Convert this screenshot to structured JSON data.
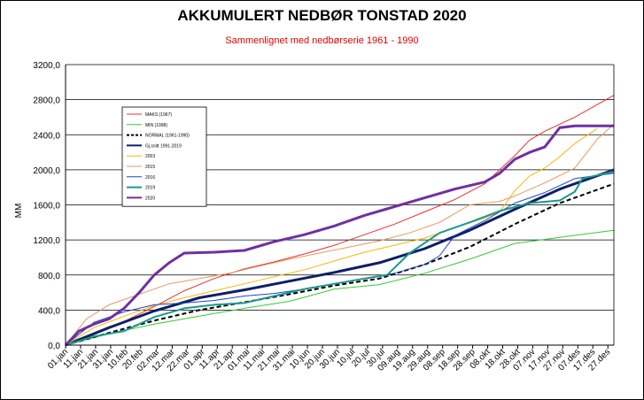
{
  "chart_data": {
    "type": "line",
    "title": "AKKUMULERT NEDBØR TONSTAD 2020",
    "subtitle": "Sammenlignet med nedbørserie 1961 - 1990",
    "ylabel": "MM",
    "ylim": [
      0,
      3200
    ],
    "yticks": [
      "0,0",
      "400,0",
      "800,0",
      "1200,0",
      "1600,0",
      "2000,0",
      "2400,0",
      "2800,0",
      "3200,0"
    ],
    "xlim": [
      1,
      366
    ],
    "xticks": [
      {
        "day": 1,
        "label": "01.jan"
      },
      {
        "day": 11,
        "label": "11.jan"
      },
      {
        "day": 21,
        "label": "21.jan"
      },
      {
        "day": 31,
        "label": "31.jan"
      },
      {
        "day": 41,
        "label": "10.feb"
      },
      {
        "day": 51,
        "label": "20.feb"
      },
      {
        "day": 62,
        "label": "02.mar"
      },
      {
        "day": 72,
        "label": "12.mar"
      },
      {
        "day": 82,
        "label": "22.mar"
      },
      {
        "day": 92,
        "label": "01.apr"
      },
      {
        "day": 102,
        "label": "11.apr"
      },
      {
        "day": 112,
        "label": "21.apr"
      },
      {
        "day": 122,
        "label": "01.mai"
      },
      {
        "day": 132,
        "label": "11.mai"
      },
      {
        "day": 142,
        "label": "21.mai"
      },
      {
        "day": 152,
        "label": "31.mai"
      },
      {
        "day": 162,
        "label": "10.jun"
      },
      {
        "day": 172,
        "label": "20.jun"
      },
      {
        "day": 182,
        "label": "30.jun"
      },
      {
        "day": 192,
        "label": "10.jul"
      },
      {
        "day": 202,
        "label": "20.jul"
      },
      {
        "day": 212,
        "label": "30.jul"
      },
      {
        "day": 222,
        "label": "09.aug"
      },
      {
        "day": 232,
        "label": "19.aug"
      },
      {
        "day": 242,
        "label": "29.aug"
      },
      {
        "day": 252,
        "label": "08.sep"
      },
      {
        "day": 262,
        "label": "18.sep"
      },
      {
        "day": 272,
        "label": "28.sep"
      },
      {
        "day": 282,
        "label": "08.okt"
      },
      {
        "day": 292,
        "label": "18.okt"
      },
      {
        "day": 302,
        "label": "28.okt"
      },
      {
        "day": 312,
        "label": "07.nov"
      },
      {
        "day": 322,
        "label": "17.nov"
      },
      {
        "day": 332,
        "label": "27.nov"
      },
      {
        "day": 342,
        "label": "07.des"
      },
      {
        "day": 352,
        "label": "17.des"
      },
      {
        "day": 362,
        "label": "27.des"
      }
    ],
    "grid": true,
    "legend_position": "upper-left",
    "series": [
      {
        "name": "MAKS (1967)",
        "color": "#e83030",
        "width": 1,
        "dashed": false,
        "points": [
          [
            1,
            0
          ],
          [
            20,
            120
          ],
          [
            40,
            270
          ],
          [
            60,
            440
          ],
          [
            80,
            620
          ],
          [
            100,
            760
          ],
          [
            120,
            870
          ],
          [
            140,
            950
          ],
          [
            160,
            1040
          ],
          [
            180,
            1140
          ],
          [
            200,
            1260
          ],
          [
            220,
            1380
          ],
          [
            240,
            1520
          ],
          [
            260,
            1660
          ],
          [
            280,
            1840
          ],
          [
            300,
            2160
          ],
          [
            310,
            2340
          ],
          [
            320,
            2440
          ],
          [
            340,
            2600
          ],
          [
            366,
            2850
          ]
        ]
      },
      {
        "name": "MIN (1998)",
        "color": "#33cc33",
        "width": 1,
        "dashed": false,
        "points": [
          [
            1,
            0
          ],
          [
            30,
            130
          ],
          [
            60,
            240
          ],
          [
            90,
            330
          ],
          [
            120,
            420
          ],
          [
            150,
            500
          ],
          [
            180,
            640
          ],
          [
            210,
            690
          ],
          [
            240,
            820
          ],
          [
            270,
            980
          ],
          [
            300,
            1160
          ],
          [
            330,
            1230
          ],
          [
            366,
            1310
          ]
        ]
      },
      {
        "name": "NORMAL (1961-1990)",
        "color": "#000000",
        "width": 2,
        "dashed": true,
        "points": [
          [
            1,
            0
          ],
          [
            30,
            140
          ],
          [
            60,
            280
          ],
          [
            90,
            400
          ],
          [
            120,
            490
          ],
          [
            150,
            580
          ],
          [
            180,
            680
          ],
          [
            210,
            760
          ],
          [
            240,
            920
          ],
          [
            270,
            1120
          ],
          [
            300,
            1380
          ],
          [
            330,
            1620
          ],
          [
            366,
            1840
          ]
        ]
      },
      {
        "name": "Gj.snitt 1991-2019",
        "color": "#0d1f66",
        "width": 3,
        "dashed": false,
        "points": [
          [
            1,
            0
          ],
          [
            30,
            200
          ],
          [
            60,
            390
          ],
          [
            90,
            540
          ],
          [
            120,
            630
          ],
          [
            150,
            730
          ],
          [
            180,
            830
          ],
          [
            210,
            940
          ],
          [
            240,
            1100
          ],
          [
            270,
            1310
          ],
          [
            300,
            1550
          ],
          [
            330,
            1780
          ],
          [
            366,
            2000
          ]
        ]
      },
      {
        "name": "2003",
        "color": "#f5b800",
        "width": 1,
        "dashed": false,
        "points": [
          [
            1,
            0
          ],
          [
            20,
            200
          ],
          [
            40,
            330
          ],
          [
            60,
            450
          ],
          [
            80,
            540
          ],
          [
            100,
            620
          ],
          [
            120,
            700
          ],
          [
            140,
            780
          ],
          [
            160,
            860
          ],
          [
            180,
            960
          ],
          [
            200,
            1060
          ],
          [
            220,
            1140
          ],
          [
            240,
            1220
          ],
          [
            260,
            1340
          ],
          [
            280,
            1450
          ],
          [
            290,
            1520
          ],
          [
            300,
            1760
          ],
          [
            310,
            1930
          ],
          [
            320,
            2020
          ],
          [
            330,
            2150
          ],
          [
            340,
            2300
          ],
          [
            355,
            2470
          ]
        ]
      },
      {
        "name": "2015",
        "color": "#e59960",
        "width": 1,
        "dashed": false,
        "points": [
          [
            1,
            0
          ],
          [
            15,
            300
          ],
          [
            30,
            460
          ],
          [
            50,
            580
          ],
          [
            70,
            700
          ],
          [
            90,
            760
          ],
          [
            110,
            820
          ],
          [
            130,
            900
          ],
          [
            150,
            980
          ],
          [
            170,
            1050
          ],
          [
            190,
            1120
          ],
          [
            210,
            1190
          ],
          [
            230,
            1280
          ],
          [
            250,
            1400
          ],
          [
            270,
            1600
          ],
          [
            290,
            1640
          ],
          [
            300,
            1700
          ],
          [
            320,
            1850
          ],
          [
            340,
            2020
          ],
          [
            355,
            2350
          ],
          [
            366,
            2520
          ]
        ]
      },
      {
        "name": "2016",
        "color": "#2244cc",
        "width": 1,
        "dashed": false,
        "points": [
          [
            1,
            0
          ],
          [
            20,
            260
          ],
          [
            40,
            380
          ],
          [
            60,
            460
          ],
          [
            80,
            480
          ],
          [
            100,
            510
          ],
          [
            120,
            560
          ],
          [
            140,
            590
          ],
          [
            160,
            640
          ],
          [
            180,
            700
          ],
          [
            200,
            760
          ],
          [
            220,
            820
          ],
          [
            240,
            920
          ],
          [
            250,
            1020
          ],
          [
            260,
            1250
          ],
          [
            280,
            1420
          ],
          [
            300,
            1620
          ],
          [
            320,
            1740
          ],
          [
            340,
            1900
          ],
          [
            366,
            1960
          ]
        ]
      },
      {
        "name": "2019",
        "color": "#1a9a8a",
        "width": 2,
        "dashed": false,
        "points": [
          [
            1,
            0
          ],
          [
            20,
            100
          ],
          [
            40,
            160
          ],
          [
            60,
            320
          ],
          [
            80,
            420
          ],
          [
            100,
            460
          ],
          [
            120,
            480
          ],
          [
            140,
            560
          ],
          [
            160,
            640
          ],
          [
            180,
            700
          ],
          [
            200,
            760
          ],
          [
            215,
            800
          ],
          [
            230,
            1050
          ],
          [
            250,
            1280
          ],
          [
            270,
            1400
          ],
          [
            290,
            1530
          ],
          [
            310,
            1620
          ],
          [
            330,
            1650
          ],
          [
            340,
            1750
          ],
          [
            345,
            1900
          ],
          [
            366,
            1980
          ]
        ]
      },
      {
        "name": "2020",
        "color": "#7030a0",
        "width": 3,
        "dashed": false,
        "points": [
          [
            1,
            0
          ],
          [
            10,
            160
          ],
          [
            20,
            240
          ],
          [
            30,
            300
          ],
          [
            40,
            420
          ],
          [
            50,
            600
          ],
          [
            60,
            800
          ],
          [
            70,
            940
          ],
          [
            80,
            1050
          ],
          [
            100,
            1060
          ],
          [
            120,
            1080
          ],
          [
            140,
            1180
          ],
          [
            160,
            1260
          ],
          [
            180,
            1360
          ],
          [
            200,
            1480
          ],
          [
            220,
            1580
          ],
          [
            240,
            1680
          ],
          [
            260,
            1780
          ],
          [
            280,
            1860
          ],
          [
            290,
            1960
          ],
          [
            300,
            2120
          ],
          [
            310,
            2200
          ],
          [
            320,
            2260
          ],
          [
            330,
            2480
          ],
          [
            340,
            2500
          ],
          [
            366,
            2500
          ]
        ]
      }
    ]
  }
}
